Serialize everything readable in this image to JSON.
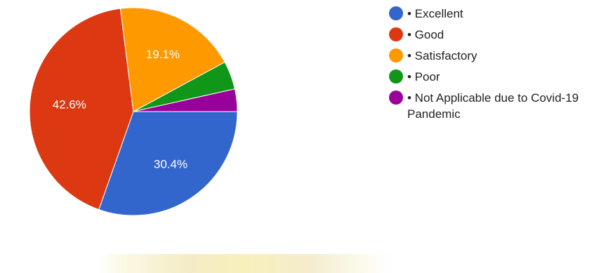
{
  "chart_data": {
    "type": "pie",
    "slices": [
      {
        "name": "• Excellent",
        "value": 30.4,
        "label": "30.4%",
        "color": "#3366cc"
      },
      {
        "name": "• Good",
        "value": 42.6,
        "label": "42.6%",
        "color": "#dc3912"
      },
      {
        "name": "• Satisfactory",
        "value": 19.1,
        "label": "19.1%",
        "color": "#ff9900"
      },
      {
        "name": "• Poor",
        "value": 4.4,
        "label": "",
        "color": "#109618"
      },
      {
        "name": "• Not Applicable due to Covid-19 Pandemic",
        "value": 3.5,
        "label": "",
        "color": "#990099"
      }
    ],
    "legend_position": "right"
  }
}
